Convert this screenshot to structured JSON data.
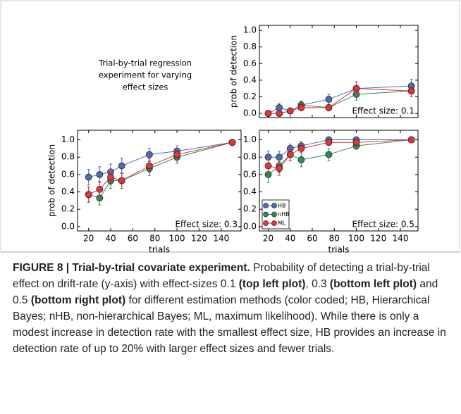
{
  "figure_title_lines": [
    "Trial-by-trial regression",
    "experiment for varying",
    "effect sizes"
  ],
  "chart_data": [
    {
      "type": "line",
      "x": [
        20,
        30,
        40,
        50,
        75,
        100,
        150
      ],
      "xlim": [
        12,
        156
      ],
      "xticks": [
        20,
        40,
        60,
        80,
        100,
        120,
        140
      ],
      "show_xtick_labels": false,
      "ylim": [
        -0.05,
        1.06
      ],
      "yticks": [
        {
          "value": 0,
          "label": "0.0"
        },
        {
          "value": 0.2,
          "label": "0.2"
        },
        {
          "value": 0.4,
          "label": "0.4"
        },
        {
          "value": 0.6,
          "label": "0.6"
        },
        {
          "value": 0.8,
          "label": "0.8"
        },
        {
          "value": 1,
          "label": "1.0"
        }
      ],
      "ylabel": "prob of detection",
      "annotation": "Effect size: 0.1",
      "legend": false,
      "series": [
        {
          "name": "HB",
          "color": "#4a6db5",
          "values": [
            0.0,
            0.07,
            0.03,
            0.1,
            0.17,
            0.3,
            0.33
          ],
          "errors": [
            0.02,
            0.05,
            0.03,
            0.05,
            0.06,
            0.08,
            0.08
          ]
        },
        {
          "name": "nHB",
          "color": "#2e8b57",
          "values": [
            0.0,
            0.0,
            0.03,
            0.1,
            0.07,
            0.23,
            0.27
          ],
          "errors": [
            0.02,
            0.02,
            0.03,
            0.05,
            0.04,
            0.07,
            0.07
          ]
        },
        {
          "name": "ML",
          "color": "#e5323b",
          "values": [
            0.0,
            0.0,
            0.03,
            0.07,
            0.07,
            0.3,
            0.27
          ],
          "errors": [
            0.02,
            0.02,
            0.03,
            0.04,
            0.04,
            0.08,
            0.07
          ]
        }
      ]
    },
    {
      "type": "line",
      "x": [
        20,
        30,
        40,
        50,
        75,
        100,
        150
      ],
      "xlim": [
        10,
        158
      ],
      "xticks": [
        20,
        40,
        60,
        80,
        100,
        120,
        140
      ],
      "show_xtick_labels": true,
      "ylim": [
        -0.05,
        1.11
      ],
      "yticks": [
        {
          "value": 0,
          "label": "0.0"
        },
        {
          "value": 0.2,
          "label": "0.2"
        },
        {
          "value": 0.4,
          "label": "0.4"
        },
        {
          "value": 0.6,
          "label": "0.6"
        },
        {
          "value": 0.8,
          "label": "0.8"
        },
        {
          "value": 1,
          "label": "1.0"
        }
      ],
      "xlabel": "trials",
      "ylabel": "prob of detection",
      "annotation": "Effect size: 0.3",
      "legend": false,
      "series": [
        {
          "name": "HB",
          "color": "#4a6db5",
          "values": [
            0.57,
            0.6,
            0.63,
            0.7,
            0.83,
            0.87,
            0.97
          ],
          "errors": [
            0.09,
            0.09,
            0.09,
            0.09,
            0.07,
            0.06,
            0.02
          ]
        },
        {
          "name": "nHB",
          "color": "#2e8b57",
          "values": [
            0.37,
            0.33,
            0.53,
            0.53,
            0.67,
            0.8,
            0.97
          ],
          "errors": [
            0.09,
            0.08,
            0.09,
            0.09,
            0.08,
            0.07,
            0.02
          ]
        },
        {
          "name": "ML",
          "color": "#e5323b",
          "values": [
            0.37,
            0.43,
            0.57,
            0.53,
            0.7,
            0.83,
            0.97
          ],
          "errors": [
            0.09,
            0.09,
            0.09,
            0.09,
            0.08,
            0.07,
            0.02
          ]
        }
      ]
    },
    {
      "type": "line",
      "x": [
        20,
        30,
        40,
        50,
        75,
        100,
        150
      ],
      "xlim": [
        12,
        156
      ],
      "xticks": [
        20,
        40,
        60,
        80,
        100,
        120,
        140
      ],
      "show_xtick_labels": true,
      "ylim": [
        -0.05,
        1.11
      ],
      "yticks": [
        {
          "value": 0,
          "label": "0.0"
        },
        {
          "value": 0.2,
          "label": "0.2"
        },
        {
          "value": 0.4,
          "label": "0.4"
        },
        {
          "value": 0.6,
          "label": "0.6"
        },
        {
          "value": 0.8,
          "label": "0.8"
        },
        {
          "value": 1,
          "label": "1.0"
        }
      ],
      "xlabel": "trials",
      "annotation": "Effect size: 0.5",
      "legend": true,
      "series": [
        {
          "name": "HB",
          "color": "#4a6db5",
          "values": [
            0.8,
            0.8,
            0.9,
            0.93,
            1.0,
            1.0,
            1.0
          ],
          "errors": [
            0.07,
            0.07,
            0.05,
            0.05,
            0.02,
            0.02,
            0.01
          ]
        },
        {
          "name": "nHB",
          "color": "#2e8b57",
          "values": [
            0.6,
            0.7,
            0.83,
            0.77,
            0.83,
            0.93,
            1.0
          ],
          "errors": [
            0.09,
            0.08,
            0.07,
            0.08,
            0.07,
            0.04,
            0.01
          ]
        },
        {
          "name": "ML",
          "color": "#e5323b",
          "values": [
            0.7,
            0.67,
            0.83,
            0.9,
            0.97,
            0.97,
            1.0
          ],
          "errors": [
            0.08,
            0.08,
            0.07,
            0.05,
            0.03,
            0.03,
            0.01
          ]
        }
      ]
    }
  ],
  "caption": [
    {
      "text": "FIGURE 8 | Trial-by-trial covariate experiment.",
      "bold": true
    },
    {
      "text": " Probability of detecting a trial-by-trial effect on drift-rate (y-axis) with effect-sizes 0.1 "
    },
    {
      "text": "(top left plot)",
      "bold": true
    },
    {
      "text": ", 0.3 "
    },
    {
      "text": "(bottom left plot)",
      "bold": true
    },
    {
      "text": " and 0.5 "
    },
    {
      "text": "(bottom right plot)",
      "bold": true
    },
    {
      "text": " for different estimation methods (color coded; HB, Hierarchical Bayes; nHB, non-hierarchical Bayes; ML, maximum likelihood). While there is only a modest increase in detection rate with the smallest effect size, HB provides an increase in detection rate of up to 20% with larger effect sizes and fewer trials."
    }
  ]
}
